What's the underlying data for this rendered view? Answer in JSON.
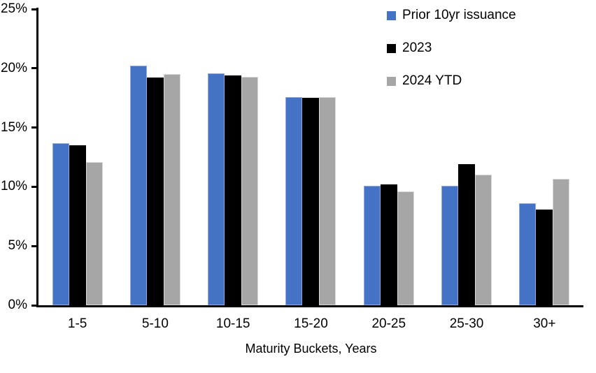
{
  "chart_data": {
    "type": "bar",
    "title": "",
    "xlabel": "Maturity Buckets, Years",
    "ylabel": "",
    "categories": [
      "1-5",
      "5-10",
      "10-15",
      "15-20",
      "20-25",
      "25-30",
      "30+"
    ],
    "series": [
      {
        "name": "Prior 10yr issuance",
        "color": "#4472C4",
        "border_color": "#8FAADC",
        "values": [
          13.7,
          20.2,
          19.6,
          17.6,
          10.1,
          10.1,
          8.6
        ]
      },
      {
        "name": "2023",
        "color": "#000000",
        "border_color": "#000000",
        "values": [
          13.5,
          19.2,
          19.4,
          17.5,
          10.2,
          11.9,
          8.1
        ]
      },
      {
        "name": "2024 YTD",
        "color": "#A6A6A6",
        "border_color": "#D9D9D9",
        "values": [
          12.1,
          19.5,
          19.3,
          17.6,
          9.6,
          11.0,
          10.7
        ]
      }
    ],
    "ylim": [
      0,
      25
    ],
    "yticks": [
      0,
      5,
      10,
      15,
      20,
      25
    ],
    "ytick_labels": [
      "0%",
      "5%",
      "10%",
      "15%",
      "20%",
      "25%"
    ],
    "grid": false,
    "legend_position": "top-right",
    "axis_color": "#000000",
    "background_color": "#FFFFFF",
    "text_color": "#000000"
  }
}
